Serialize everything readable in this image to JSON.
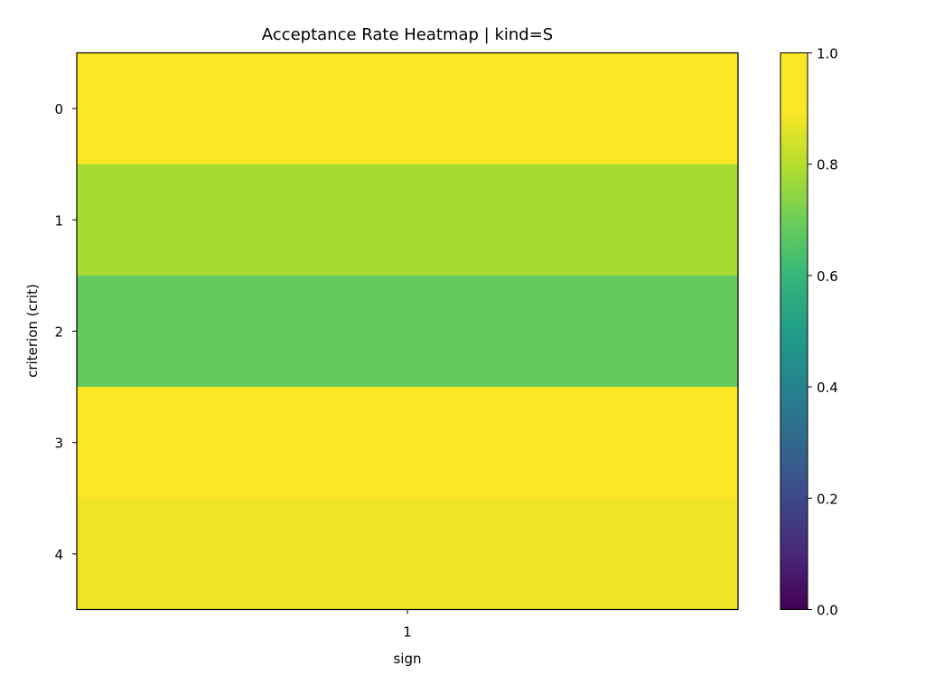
{
  "chart_data": {
    "type": "heatmap",
    "title": "Acceptance Rate Heatmap | kind=S",
    "xlabel": "sign",
    "ylabel": "criterion (crit)",
    "x_categories": [
      "1"
    ],
    "y_categories": [
      "0",
      "1",
      "2",
      "3",
      "4"
    ],
    "values": [
      [
        0.92
      ],
      [
        0.78
      ],
      [
        0.68
      ],
      [
        0.96
      ],
      [
        0.88
      ]
    ],
    "colorbar": {
      "range": [
        0.0,
        1.0
      ],
      "ticks": [
        "0.0",
        "0.2",
        "0.4",
        "0.6",
        "0.8",
        "1.0"
      ],
      "colormap": "viridis"
    }
  }
}
